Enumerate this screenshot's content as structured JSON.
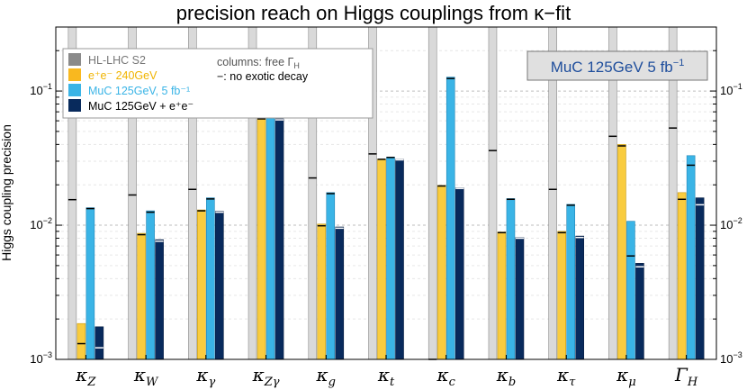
{
  "chart_data": {
    "type": "bar",
    "title": "precision reach on Higgs couplings from κ−fit",
    "ylabel": "Higgs coupling precision",
    "yscale": "log",
    "ylim": [
      0.001,
      0.3
    ],
    "y_ticks": [
      {
        "value": 0.001,
        "base": "10",
        "exp": "−3"
      },
      {
        "value": 0.01,
        "base": "10",
        "exp": "−2"
      },
      {
        "value": 0.1,
        "base": "10",
        "exp": "−1"
      }
    ],
    "categories": [
      {
        "main": "κ",
        "sub": "Z"
      },
      {
        "main": "κ",
        "sub": "W"
      },
      {
        "main": "κ",
        "sub": "γ"
      },
      {
        "main": "κ",
        "sub": "Zγ"
      },
      {
        "main": "κ",
        "sub": "g"
      },
      {
        "main": "κ",
        "sub": "t"
      },
      {
        "main": "κ",
        "sub": "c"
      },
      {
        "main": "κ",
        "sub": "b"
      },
      {
        "main": "κ",
        "sub": "τ"
      },
      {
        "main": "κ",
        "sub": "μ"
      },
      {
        "main": "Γ",
        "sub": "H"
      }
    ],
    "series": [
      {
        "name": "HL-LHC S2",
        "color": "#d9d9d9",
        "edge": "#8a8a8a",
        "free_gamma": [
          0.3,
          0.3,
          0.3,
          0.3,
          0.3,
          0.3,
          0.3,
          0.3,
          0.3,
          0.3,
          0.3
        ],
        "no_exotic": [
          0.0155,
          0.0168,
          0.0185,
          0.104,
          0.0225,
          0.034,
          0.001,
          0.036,
          0.0185,
          0.046,
          0.053
        ]
      },
      {
        "name": "e⁺e⁻ 240GeV",
        "color": "#f9cc3f",
        "edge": "#c69a10",
        "free_gamma": [
          0.00185,
          0.0087,
          0.013,
          0.063,
          0.0102,
          0.031,
          0.0198,
          0.0089,
          0.009,
          0.04,
          0.0175
        ],
        "no_exotic": [
          0.00131,
          0.0085,
          0.0128,
          0.062,
          0.0099,
          0.031,
          0.0196,
          0.0088,
          0.0088,
          0.039,
          0.0156
        ]
      },
      {
        "name": "MuC 125GeV, 5 fb⁻¹",
        "color": "#3ab4e6",
        "edge": "#1c83b6",
        "free_gamma": [
          0.0135,
          0.0128,
          0.016,
          0.104,
          0.0175,
          0.0322,
          0.127,
          0.0158,
          0.0143,
          0.0107,
          0.033
        ],
        "no_exotic": [
          0.0133,
          0.0125,
          0.0157,
          0.103,
          0.0172,
          0.032,
          0.124,
          0.0156,
          0.0141,
          0.0059,
          0.028
        ]
      },
      {
        "name": "MuC 125GeV + e⁺e⁻",
        "color": "#082a5c",
        "edge": "#041a3e",
        "free_gamma": [
          0.00175,
          0.0078,
          0.0127,
          0.062,
          0.0097,
          0.031,
          0.019,
          0.0081,
          0.0083,
          0.0052,
          0.016
        ],
        "no_exotic": [
          0.00122,
          0.0076,
          0.0125,
          0.061,
          0.0095,
          0.0307,
          0.0188,
          0.008,
          0.0081,
          0.0049,
          0.0142
        ]
      }
    ],
    "legend": {
      "position": "top-left",
      "note_free": "columns: free Γ",
      "note_free_sub": "H",
      "note_dash": "−: no exotic decay"
    },
    "annotation": {
      "text": "MuC 125GeV 5 fb",
      "sup": "−1",
      "position": "top-right"
    },
    "grid": true
  }
}
